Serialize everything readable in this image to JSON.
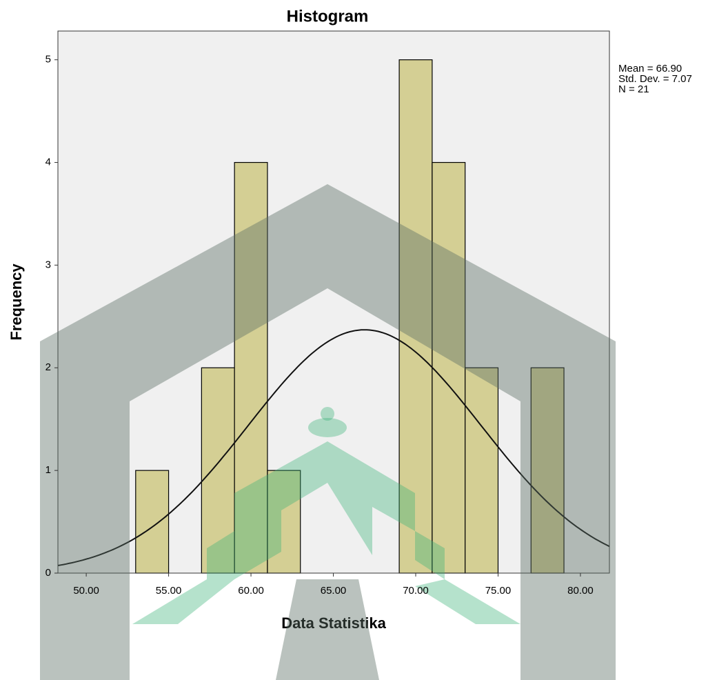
{
  "chart_data": {
    "type": "histogram",
    "title": "Histogram",
    "x_label": "Data Statistika",
    "y_label": "Frequency",
    "bins": [
      53,
      55,
      57,
      59,
      61,
      63,
      65,
      67,
      69,
      71,
      73,
      75,
      77,
      79
    ],
    "values": [
      1,
      0,
      2,
      4,
      1,
      0,
      0,
      0,
      5,
      4,
      2,
      0,
      2
    ],
    "color": "#d4cf94",
    "xlim": [
      48.28,
      81.76
    ],
    "ylim": [
      0,
      5.28
    ],
    "xticks": [
      {
        "value": 50,
        "label": "50.00"
      },
      {
        "value": 55,
        "label": "55.00"
      },
      {
        "value": 60,
        "label": "60.00"
      },
      {
        "value": 65,
        "label": "65.00"
      },
      {
        "value": 70,
        "label": "70.00"
      },
      {
        "value": 75,
        "label": "75.00"
      },
      {
        "value": 80,
        "label": "80.00"
      }
    ],
    "yticks": [
      0,
      1,
      2,
      3,
      4,
      5
    ],
    "normal_curve": true,
    "stats": [
      {
        "value": 66.9,
        "label": "Mean = 66.90"
      },
      {
        "value": 7.07,
        "label": "Std. Dev. = 7.07"
      },
      {
        "value": 21,
        "label": "N = 21"
      }
    ]
  }
}
